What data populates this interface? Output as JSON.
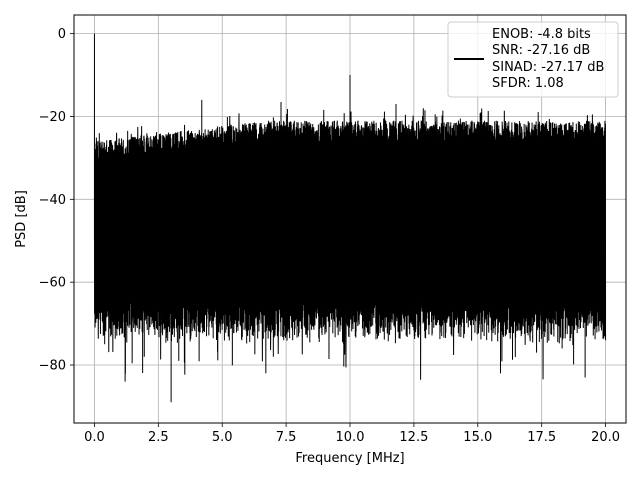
{
  "chart_data": {
    "type": "line",
    "title": "",
    "xlabel": "Frequency [MHz]",
    "ylabel": "PSD [dB]",
    "xlim": [
      -0.8,
      20.8
    ],
    "ylim": [
      -94,
      4.5
    ],
    "grid": true,
    "legend_placement": "upper-right",
    "xticks": [
      0.0,
      2.5,
      5.0,
      7.5,
      10.0,
      12.5,
      15.0,
      17.5,
      20.0
    ],
    "xtick_labels": [
      "0.0",
      "2.5",
      "5.0",
      "7.5",
      "10.0",
      "12.5",
      "15.0",
      "17.5",
      "20.0"
    ],
    "yticks": [
      0,
      -20,
      -40,
      -60,
      -80
    ],
    "ytick_labels": [
      "0",
      "−20",
      "−40",
      "−60",
      "−80"
    ],
    "series": [
      {
        "name": "",
        "color": "#000000",
        "x_range": [
          0.0,
          20.0
        ],
        "noise_band_upper": [
          -26,
          -21
        ],
        "noise_band_lower": [
          -70,
          -60
        ],
        "peaks": [
          {
            "x": 0.0,
            "y": 0.0
          },
          {
            "x": 10.0,
            "y": -10.0
          },
          {
            "x": 4.2,
            "y": -16.0
          },
          {
            "x": 7.3,
            "y": -16.5
          },
          {
            "x": 11.8,
            "y": -17.0
          }
        ],
        "dips": [
          {
            "x": 3.0,
            "y": -89.0
          },
          {
            "x": 1.2,
            "y": -84.0
          },
          {
            "x": 19.2,
            "y": -83.0
          },
          {
            "x": 0.4,
            "y": -75.0
          },
          {
            "x": 1.95,
            "y": -78.0
          },
          {
            "x": 3.3,
            "y": -79.0
          },
          {
            "x": 7.0,
            "y": -78.0
          },
          {
            "x": 17.3,
            "y": -77.0
          },
          {
            "x": 18.3,
            "y": -76.0
          }
        ]
      }
    ],
    "legend": [
      "ENOB: -4.8 bits",
      "SNR: -27.16 dB",
      "SINAD: -27.17 dB",
      "SFDR: 1.08"
    ]
  }
}
